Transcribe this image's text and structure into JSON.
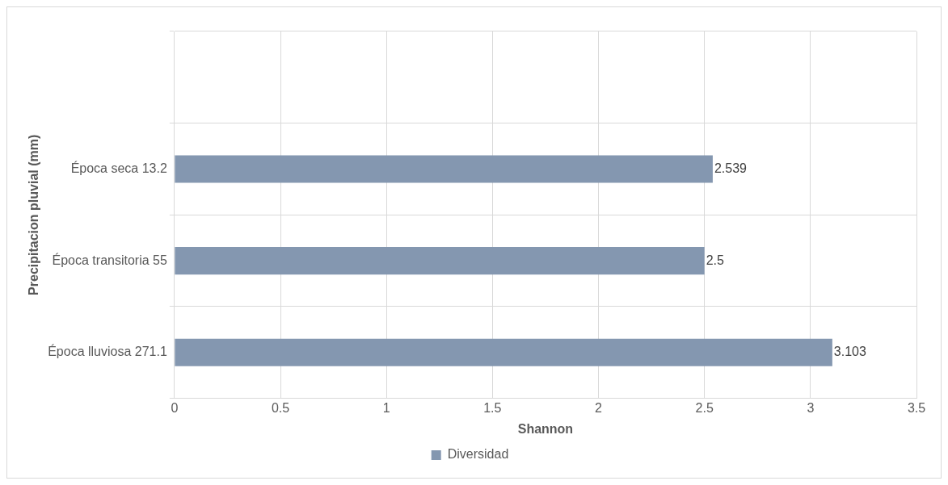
{
  "chart_data": {
    "type": "bar",
    "orientation": "horizontal",
    "categories": [
      null,
      "Época seca 13.2",
      "Época transitoria 55",
      "Época lluviosa 271.1"
    ],
    "series": [
      {
        "name": "Diversidad",
        "color": "#8497b0",
        "values": [
          null,
          2.539,
          2.5,
          3.103
        ]
      }
    ],
    "xlabel": "Shannon",
    "ylabel": "Precipitacion pluvial (mm)",
    "xlim": [
      0,
      3.5
    ],
    "xticks": [
      0,
      0.5,
      1,
      1.5,
      2,
      2.5,
      3,
      3.5
    ],
    "grid": true,
    "legend": "bottom",
    "data_labels": true
  }
}
